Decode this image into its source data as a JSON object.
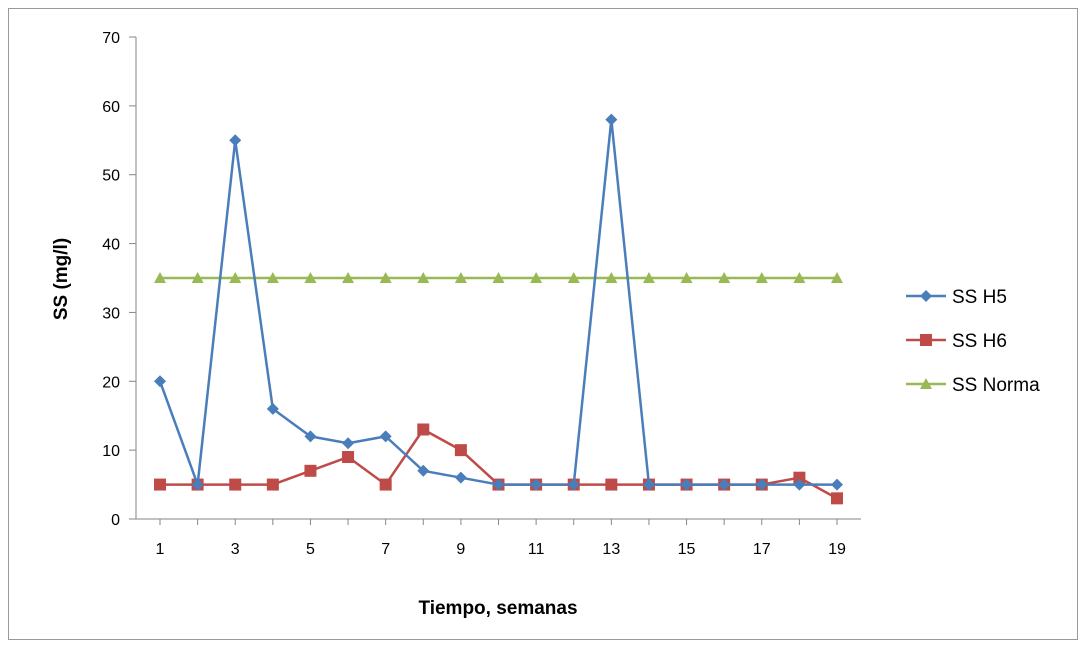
{
  "chart_data": {
    "type": "line",
    "title": "",
    "xlabel": "Tiempo, semanas",
    "ylabel": "SS (mg/l)",
    "x": [
      1,
      2,
      3,
      4,
      5,
      6,
      7,
      8,
      9,
      10,
      11,
      12,
      13,
      14,
      15,
      16,
      17,
      18,
      19
    ],
    "x_tick_labels": [
      "1",
      "3",
      "5",
      "7",
      "9",
      "11",
      "13",
      "15",
      "17",
      "19"
    ],
    "y_tick_labels": [
      "0",
      "10",
      "20",
      "30",
      "40",
      "50",
      "60",
      "70"
    ],
    "ylim": [
      0,
      70
    ],
    "grid": false,
    "legend_position": "right",
    "series": [
      {
        "name": "SS H5",
        "color": "#4a7ebb",
        "marker": "diamond",
        "values": [
          20,
          5,
          55,
          16,
          12,
          11,
          12,
          7,
          6,
          5,
          5,
          5,
          58,
          5,
          5,
          5,
          5,
          5,
          5
        ]
      },
      {
        "name": "SS H6",
        "color": "#be4b48",
        "marker": "square",
        "values": [
          5,
          5,
          5,
          5,
          7,
          9,
          5,
          13,
          10,
          5,
          5,
          5,
          5,
          5,
          5,
          5,
          5,
          6,
          3
        ]
      },
      {
        "name": "SS Norma",
        "color": "#98b954",
        "marker": "triangle",
        "values": [
          35,
          35,
          35,
          35,
          35,
          35,
          35,
          35,
          35,
          35,
          35,
          35,
          35,
          35,
          35,
          35,
          35,
          35,
          35
        ]
      }
    ]
  }
}
